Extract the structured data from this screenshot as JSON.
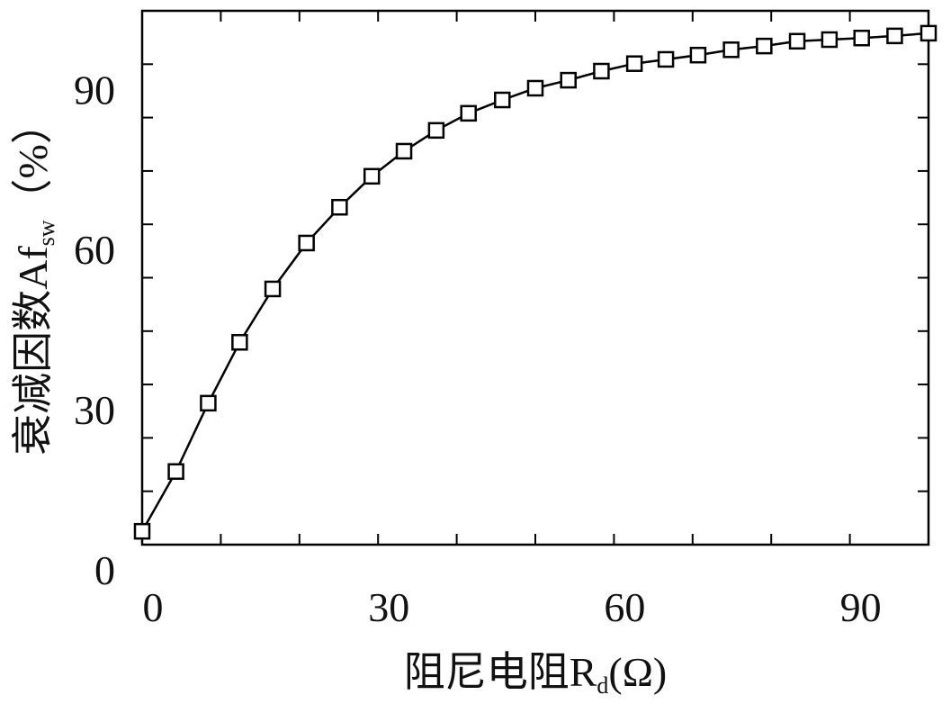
{
  "chart_data": {
    "type": "line",
    "xlabel": {
      "main": "阻尼电阻R",
      "sub": "d",
      "end": "(Ω)"
    },
    "ylabel": {
      "main": "衰减因数Af",
      "sub": "sw",
      "end": "（%）"
    },
    "x": [
      0,
      4.3,
      8.4,
      12.4,
      16.6,
      20.9,
      25.1,
      29.2,
      33.3,
      37.4,
      41.5,
      45.8,
      50,
      54.2,
      58.4,
      62.6,
      66.6,
      70.7,
      74.9,
      79.1,
      83.3,
      87.4,
      91.5,
      95.7,
      100
    ],
    "values": [
      2.5,
      13.7,
      26.5,
      37.9,
      47.9,
      56.5,
      63.2,
      69.0,
      73.7,
      77.6,
      80.8,
      83.3,
      85.5,
      87.0,
      88.7,
      90.1,
      90.9,
      91.7,
      92.7,
      93.4,
      94.3,
      94.6,
      94.9,
      95.3,
      95.8
    ],
    "color": "#000000",
    "marker": "square",
    "xlim": [
      0,
      100
    ],
    "ylim": [
      0,
      100
    ],
    "xticks": [
      0,
      30,
      60,
      90
    ],
    "yticks": [
      0,
      30,
      60,
      90
    ],
    "xminor": [
      10,
      20,
      40,
      50,
      70,
      80
    ],
    "yminor": [
      10,
      20,
      40,
      50,
      70,
      80
    ]
  }
}
